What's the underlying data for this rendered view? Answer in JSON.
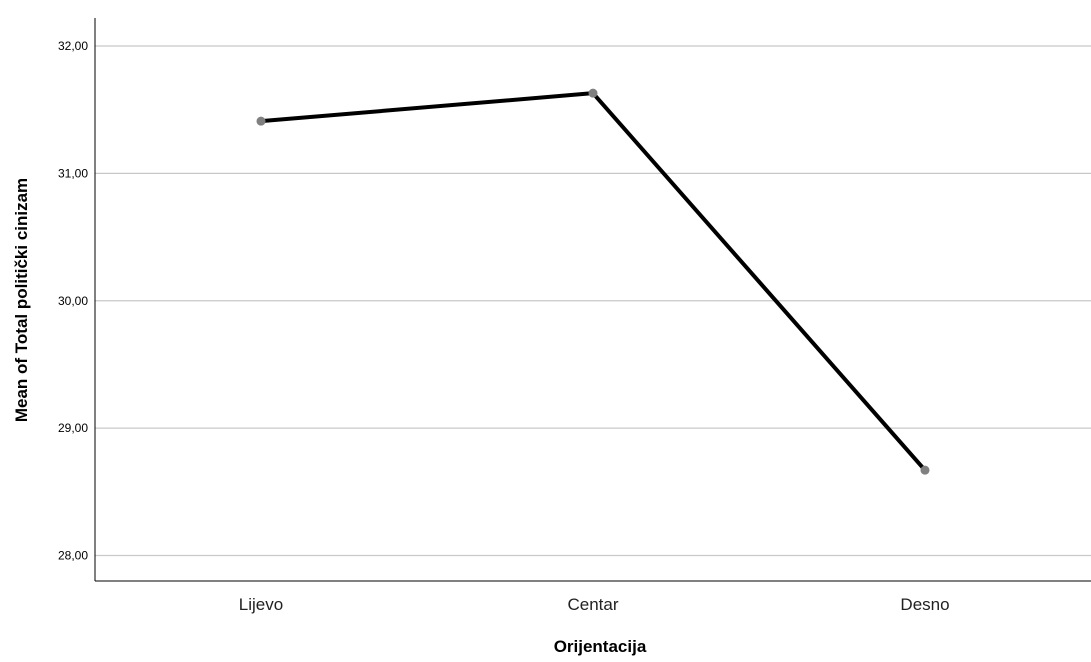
{
  "chart_data": {
    "type": "line",
    "categories": [
      "Lijevo",
      "Centar",
      "Desno"
    ],
    "series": [
      {
        "values": [
          31.41,
          31.63,
          28.67
        ]
      }
    ],
    "xlabel": "Orijentacija",
    "ylabel": "Mean of Total politički cinizam",
    "ylim": [
      27.8,
      32.22
    ],
    "yticks": [
      28,
      29,
      30,
      31,
      32
    ],
    "ytick_labels": [
      "28,00",
      "29,00",
      "30,00",
      "31,00",
      "32,00"
    ],
    "grid": "horizontal",
    "colors": {
      "line": "#000000",
      "marker": "#808080",
      "grid": "#c8c8c8",
      "axis": "#000000"
    }
  }
}
